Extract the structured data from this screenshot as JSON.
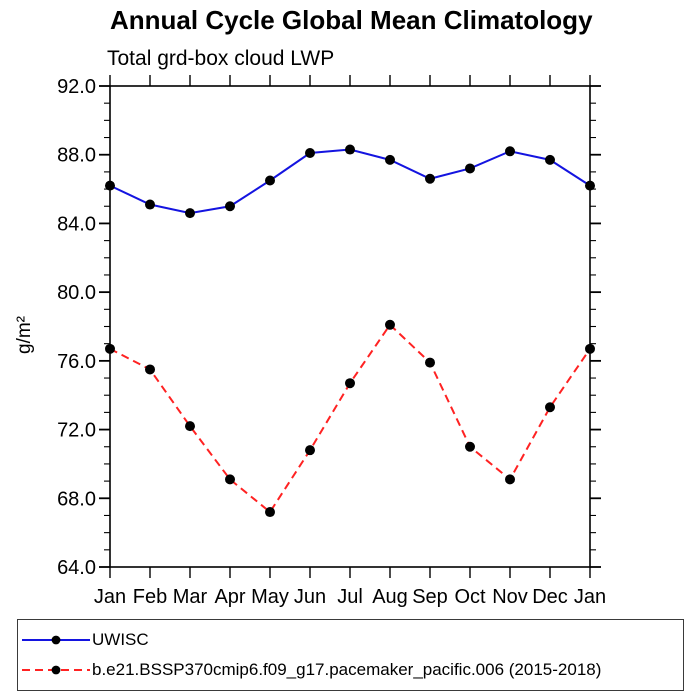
{
  "title": "Annual Cycle Global Mean Climatology",
  "subtitle": "Total grd-box cloud LWP",
  "ylabel": "g/m²",
  "chart_data": {
    "type": "line",
    "categories": [
      "Jan",
      "Feb",
      "Mar",
      "Apr",
      "May",
      "Jun",
      "Jul",
      "Aug",
      "Sep",
      "Oct",
      "Nov",
      "Dec",
      "Jan"
    ],
    "series": [
      {
        "name": "UWISC",
        "color": "#1414e0",
        "line_style": "solid",
        "marker": "filled-black-circle",
        "values": [
          86.2,
          85.1,
          84.6,
          85.0,
          86.5,
          88.1,
          88.3,
          87.7,
          86.6,
          87.2,
          88.2,
          87.7,
          86.2
        ]
      },
      {
        "name": "b.e21.BSSP370cmip6.f09_g17.pacemaker_pacific.006 (2015-2018)",
        "color": "#ff2222",
        "line_style": "dashed",
        "marker": "filled-black-circle",
        "values": [
          76.7,
          75.5,
          72.2,
          69.1,
          67.2,
          70.8,
          74.7,
          78.1,
          75.9,
          71.0,
          69.1,
          73.3,
          76.7
        ]
      }
    ],
    "ylim": [
      64,
      92
    ],
    "yticks": [
      {
        "value": 64,
        "label": "64.0"
      },
      {
        "value": 68,
        "label": "68.0"
      },
      {
        "value": 72,
        "label": "72.0"
      },
      {
        "value": 76,
        "label": "76.0"
      },
      {
        "value": 80,
        "label": "80.0"
      },
      {
        "value": 84,
        "label": "84.0"
      },
      {
        "value": 88,
        "label": "88.0"
      },
      {
        "value": 92,
        "label": "92.0"
      }
    ],
    "ytick_minor_step": 1,
    "grid": false,
    "legend_position": "bottom",
    "axis_color": "#000000",
    "marker_color": "#000000"
  }
}
